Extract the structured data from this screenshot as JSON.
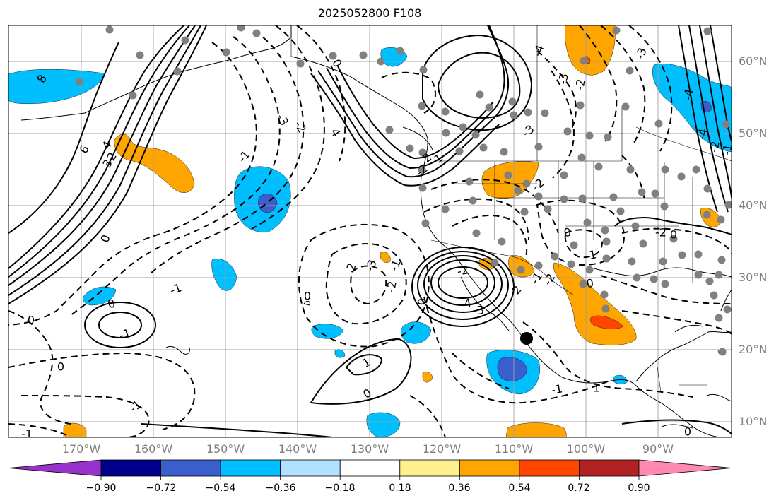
{
  "title": "2025052800 F108",
  "lat_labels": [
    "60°N",
    "50°N",
    "40°N",
    "30°N",
    "20°N",
    "10°N"
  ],
  "lon_labels": [
    "170°W",
    "160°W",
    "150°W",
    "140°W",
    "130°W",
    "120°W",
    "110°W",
    "100°W",
    "90°W"
  ],
  "colorbar": {
    "tick_labels": [
      "−0.90",
      "−0.72",
      "−0.54",
      "−0.36",
      "−0.18",
      "0.18",
      "0.36",
      "0.54",
      "0.72",
      "0.90"
    ],
    "colors": [
      "#9932cc",
      "#00008b",
      "#3a5fcd",
      "#00bfff",
      "#b0e2ff",
      "#ffffff",
      "#fff08f",
      "#ffa500",
      "#ff4500",
      "#b22222",
      "#ff89b0"
    ]
  },
  "contour_labels": [
    "8",
    "6",
    "4",
    "3",
    "2",
    "0",
    "-1",
    "0",
    "-3",
    "-2",
    "-1",
    "4",
    "2",
    "-3",
    "-2",
    "-1",
    "1",
    "-2",
    "-2",
    "4",
    "3",
    "2",
    "-1",
    "-2",
    "0",
    "-1",
    "0",
    "0",
    "-1",
    "1",
    "-1",
    "0",
    "0",
    "-1",
    "1",
    "-2",
    "-3",
    "0",
    "0",
    "2",
    "-3",
    "-4",
    "-4",
    "-4",
    "-2",
    "-1",
    "0",
    "-1",
    "0",
    "-2",
    "-3",
    "-2",
    "0"
  ],
  "colors": {
    "grid": "#a0a0a0",
    "contour": "#000000",
    "dots": "#808080",
    "marker": "#000000"
  }
}
